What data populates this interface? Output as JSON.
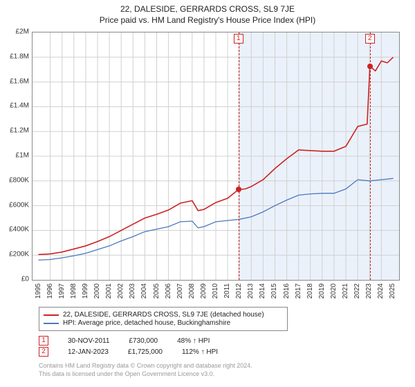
{
  "title": "22, DALESIDE, GERRARDS CROSS, SL9 7JE",
  "subtitle": "Price paid vs. HM Land Registry's House Price Index (HPI)",
  "chart": {
    "type": "line",
    "background_color": "#ffffff",
    "grid_color": "#d0d0d0",
    "border_color": "#888888",
    "xlim": [
      1994.5,
      2025.5
    ],
    "ylim": [
      0,
      2000000
    ],
    "ytick_step": 200000,
    "ytick_labels": [
      "£0",
      "£200K",
      "£400K",
      "£600K",
      "£800K",
      "£1M",
      "£1.2M",
      "£1.4M",
      "£1.6M",
      "£1.8M",
      "£2M"
    ],
    "xticks": [
      1995,
      1996,
      1997,
      1998,
      1999,
      2000,
      2001,
      2002,
      2003,
      2004,
      2005,
      2006,
      2007,
      2008,
      2009,
      2010,
      2011,
      2012,
      2013,
      2014,
      2015,
      2016,
      2017,
      2018,
      2019,
      2020,
      2021,
      2022,
      2023,
      2024,
      2025
    ],
    "shade_from_year": 2011.92,
    "shade_color": "rgba(120,160,220,0.15)",
    "series": {
      "price_paid": {
        "label": "22, DALESIDE, GERRARDS CROSS, SL9 7JE (detached house)",
        "color": "#cc2222",
        "line_width": 1.6,
        "points": [
          [
            1995,
            205000
          ],
          [
            1996,
            210000
          ],
          [
            1997,
            225000
          ],
          [
            1998,
            250000
          ],
          [
            1999,
            275000
          ],
          [
            2000,
            310000
          ],
          [
            2001,
            350000
          ],
          [
            2002,
            400000
          ],
          [
            2003,
            450000
          ],
          [
            2004,
            500000
          ],
          [
            2005,
            530000
          ],
          [
            2006,
            565000
          ],
          [
            2007,
            620000
          ],
          [
            2008,
            640000
          ],
          [
            2008.5,
            560000
          ],
          [
            2009,
            570000
          ],
          [
            2010,
            625000
          ],
          [
            2011,
            660000
          ],
          [
            2011.92,
            730000
          ],
          [
            2012.5,
            735000
          ],
          [
            2013,
            755000
          ],
          [
            2014,
            810000
          ],
          [
            2015,
            900000
          ],
          [
            2016,
            980000
          ],
          [
            2017,
            1050000
          ],
          [
            2018,
            1045000
          ],
          [
            2019,
            1040000
          ],
          [
            2020,
            1040000
          ],
          [
            2021,
            1080000
          ],
          [
            2022,
            1240000
          ],
          [
            2022.8,
            1260000
          ],
          [
            2023.03,
            1725000
          ],
          [
            2023.5,
            1690000
          ],
          [
            2024,
            1770000
          ],
          [
            2024.5,
            1755000
          ],
          [
            2025,
            1800000
          ]
        ]
      },
      "hpi": {
        "label": "HPI: Average price, detached house, Buckinghamshire",
        "color": "#4a78c0",
        "line_width": 1.3,
        "points": [
          [
            1995,
            160000
          ],
          [
            1996,
            165000
          ],
          [
            1997,
            178000
          ],
          [
            1998,
            195000
          ],
          [
            1999,
            215000
          ],
          [
            2000,
            245000
          ],
          [
            2001,
            275000
          ],
          [
            2002,
            315000
          ],
          [
            2003,
            350000
          ],
          [
            2004,
            390000
          ],
          [
            2005,
            410000
          ],
          [
            2006,
            430000
          ],
          [
            2007,
            470000
          ],
          [
            2008,
            475000
          ],
          [
            2008.5,
            420000
          ],
          [
            2009,
            430000
          ],
          [
            2010,
            470000
          ],
          [
            2011,
            480000
          ],
          [
            2012,
            490000
          ],
          [
            2013,
            510000
          ],
          [
            2014,
            550000
          ],
          [
            2015,
            600000
          ],
          [
            2016,
            645000
          ],
          [
            2017,
            685000
          ],
          [
            2018,
            695000
          ],
          [
            2019,
            700000
          ],
          [
            2020,
            700000
          ],
          [
            2021,
            735000
          ],
          [
            2022,
            810000
          ],
          [
            2023,
            800000
          ],
          [
            2024,
            810000
          ],
          [
            2025,
            820000
          ]
        ]
      }
    },
    "transactions": [
      {
        "num": "1",
        "year": 2011.92,
        "price": 730000
      },
      {
        "num": "2",
        "year": 2023.03,
        "price": 1725000
      }
    ],
    "marker_border_color": "#cc2222",
    "dot_color": "#cc2222",
    "label_fontsize": 10
  },
  "legend": {
    "items": [
      {
        "color": "#cc2222",
        "label": "22, DALESIDE, GERRARDS CROSS, SL9 7JE (detached house)"
      },
      {
        "color": "#4a78c0",
        "label": "HPI: Average price, detached house, Buckinghamshire"
      }
    ]
  },
  "txn_table": {
    "rows": [
      {
        "num": "1",
        "date": "30-NOV-2011",
        "price": "£730,000",
        "pct": "48% ↑ HPI"
      },
      {
        "num": "2",
        "date": "12-JAN-2023",
        "price": "£1,725,000",
        "pct": "112% ↑ HPI"
      }
    ]
  },
  "attribution": {
    "line1": "Contains HM Land Registry data © Crown copyright and database right 2024.",
    "line2": "This data is licensed under the Open Government Licence v3.0."
  }
}
